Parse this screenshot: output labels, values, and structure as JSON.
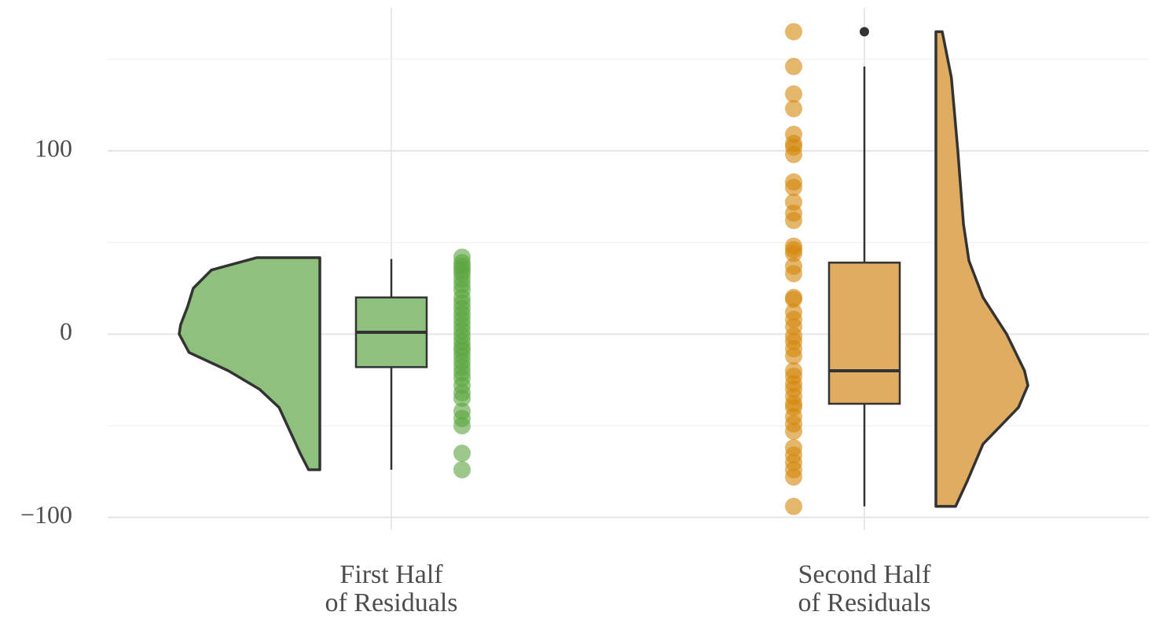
{
  "chart_data": {
    "type": "raincloud",
    "categories": [
      "First Half\nof Residuals",
      "Second Half\nof Residuals"
    ],
    "ylim": [
      -107,
      178
    ],
    "yticks": [
      {
        "value": -100,
        "label": "−100"
      },
      0,
      100
    ],
    "yminor": [
      -50,
      50,
      150
    ],
    "grid": true,
    "groups": [
      {
        "color": "#8fc17e",
        "point_color": "#5aa53e",
        "side": "left",
        "box": {
          "whisker_low": -74,
          "q1": -18,
          "median": 1,
          "q3": 20,
          "whisker_high": 41
        },
        "points": [
          42,
          39,
          37,
          35,
          33,
          30,
          27,
          24,
          20,
          17,
          14,
          11,
          8,
          5,
          2,
          -1,
          -4,
          -7,
          -9,
          -12,
          -15,
          -18,
          -21,
          -24,
          -28,
          -32,
          -35,
          -42,
          -46,
          -50,
          -65,
          -74
        ],
        "density": {
          "y": [
            41.7,
            35,
            25,
            15,
            5,
            0,
            -10,
            -20,
            -30,
            -40,
            -55,
            -65,
            -74
          ],
          "values": [
            0.45,
            0.77,
            0.9,
            0.94,
            0.99,
            1,
            0.93,
            0.65,
            0.43,
            0.29,
            0.2,
            0.14,
            0.08
          ]
        }
      },
      {
        "color": "#e0ac62",
        "point_color": "#d4870a",
        "side": "right",
        "box": {
          "whisker_low": -94,
          "q1": -38,
          "median": -20,
          "q3": 39,
          "whisker_high": 146,
          "outliers": [
            165
          ]
        },
        "points": [
          165,
          146,
          131,
          123,
          109,
          104,
          102,
          98,
          83,
          80,
          72,
          66,
          62,
          48,
          46,
          44,
          37,
          33,
          20,
          19,
          12,
          8,
          4,
          -1,
          -4,
          -8,
          -12,
          -20,
          -23,
          -27,
          -30,
          -34,
          -38,
          -40,
          -45,
          -49,
          -53,
          -62,
          -66,
          -70,
          -74,
          -78,
          -94
        ],
        "density": {
          "y": [
            165,
            140,
            100,
            60,
            40,
            20,
            0,
            -20,
            -28,
            -40,
            -60,
            -80,
            -94
          ],
          "values": [
            0.045,
            0.11,
            0.156,
            0.196,
            0.235,
            0.335,
            0.503,
            0.63,
            0.654,
            0.587,
            0.335,
            0.224,
            0.14
          ]
        }
      }
    ]
  }
}
